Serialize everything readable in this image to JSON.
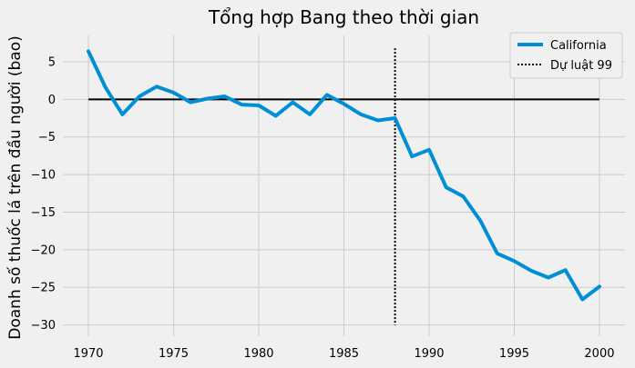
{
  "chart_data": {
    "type": "line",
    "title": "Tổng hợp Bang theo thời gian",
    "xlabel": "",
    "ylabel": "Doanh số thuốc lá trên đầu người (bao)",
    "xlim": [
      1968.5,
      2001.5
    ],
    "ylim": [
      -31.5,
      8.5
    ],
    "x_ticks": [
      1970,
      1975,
      1980,
      1985,
      1990,
      1995,
      2000
    ],
    "y_ticks": [
      5,
      0,
      -5,
      -10,
      -15,
      -20,
      -25,
      -30
    ],
    "y_tick_labels": [
      "5",
      "0",
      "−5",
      "−10",
      "−15",
      "−20",
      "−25",
      "−30"
    ],
    "grid": true,
    "legend_position": "top-right",
    "series": [
      {
        "name": "California",
        "color": "#008fd5",
        "x": [
          1970,
          1971,
          1972,
          1973,
          1974,
          1975,
          1976,
          1977,
          1978,
          1979,
          1980,
          1981,
          1982,
          1983,
          1984,
          1985,
          1986,
          1987,
          1988,
          1989,
          1990,
          1991,
          1992,
          1993,
          1994,
          1995,
          1996,
          1997,
          1998,
          1999,
          2000
        ],
        "values": [
          6.4,
          1.6,
          -2.0,
          0.4,
          1.7,
          0.9,
          -0.4,
          0.1,
          0.4,
          -0.7,
          -0.8,
          -2.2,
          -0.4,
          -2.0,
          0.6,
          -0.6,
          -2.0,
          -2.8,
          -2.5,
          -7.6,
          -6.7,
          -11.7,
          -12.9,
          -16.1,
          -20.5,
          -21.5,
          -22.8,
          -23.7,
          -22.7,
          -26.6,
          -24.9
        ]
      }
    ],
    "reference_lines": [
      {
        "orientation": "horizontal",
        "value": 0,
        "color": "#000000",
        "style": "solid"
      },
      {
        "orientation": "vertical",
        "value": 1988,
        "name": "Dự luật 99",
        "color": "#000000",
        "style": "dotted",
        "span": [
          -30,
          6.8
        ]
      }
    ]
  }
}
